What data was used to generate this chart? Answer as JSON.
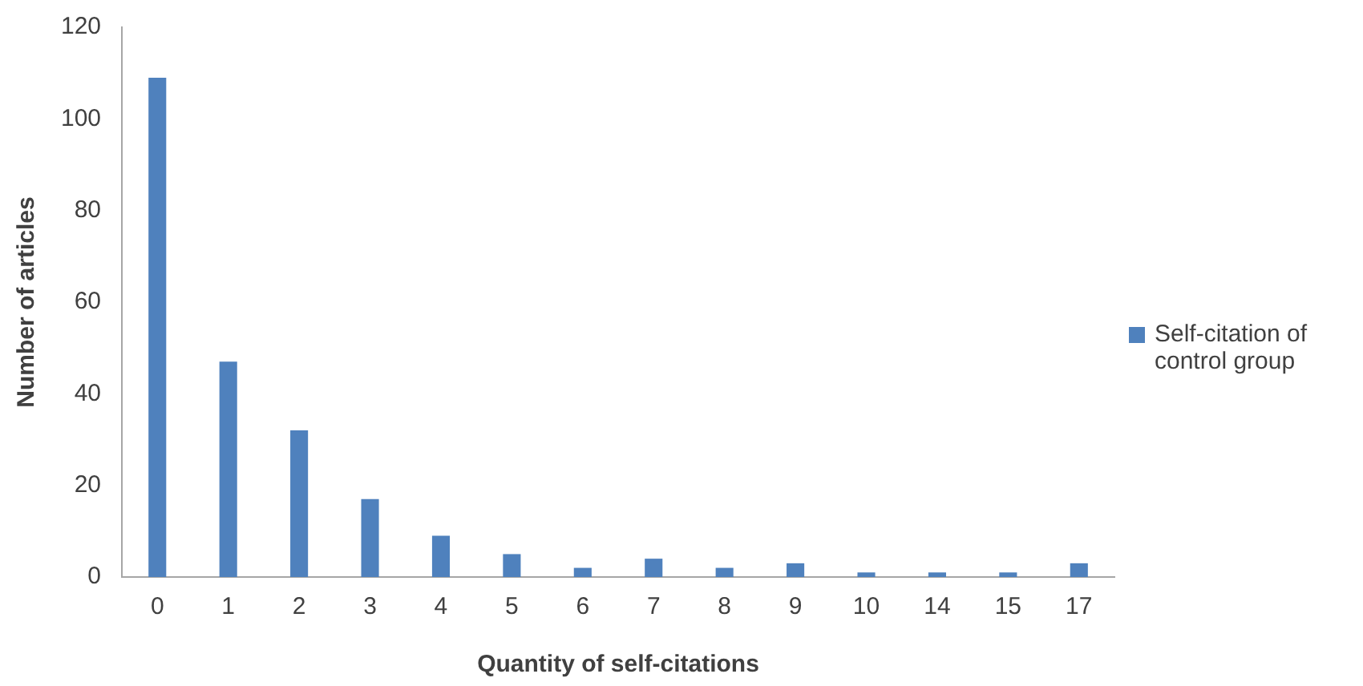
{
  "chart_data": {
    "type": "bar",
    "xlabel": "Quantity of self-citations",
    "ylabel": "Number of articles",
    "categories": [
      "0",
      "1",
      "2",
      "3",
      "4",
      "5",
      "6",
      "7",
      "8",
      "9",
      "10",
      "14",
      "15",
      "17"
    ],
    "series": [
      {
        "name": "Self-citation of control group",
        "color": "#4f81bd",
        "values": [
          109,
          47,
          32,
          17,
          9,
          5,
          2,
          4,
          2,
          3,
          1,
          1,
          1,
          3
        ]
      }
    ],
    "ylim": [
      0,
      120
    ],
    "yticks": [
      0,
      20,
      40,
      60,
      80,
      100,
      120
    ],
    "grid": false,
    "legend": "right"
  }
}
